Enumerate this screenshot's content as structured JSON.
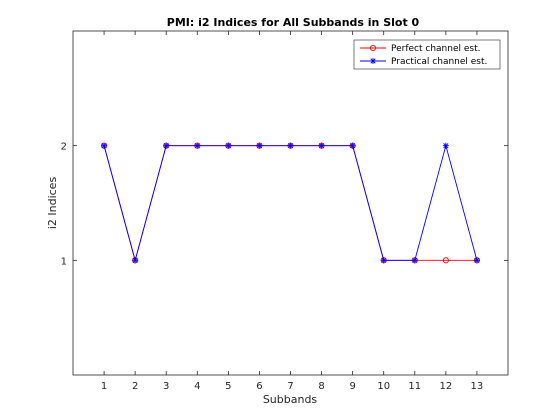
{
  "chart_data": {
    "type": "line",
    "title": "PMI: i2 Indices for All Subbands in Slot 0",
    "xlabel": "Subbands",
    "ylabel": "i2 Indices",
    "x": [
      1,
      2,
      3,
      4,
      5,
      6,
      7,
      8,
      9,
      10,
      11,
      12,
      13
    ],
    "xlim": [
      0,
      14
    ],
    "ylim": [
      0,
      3
    ],
    "xticks": [
      "1",
      "2",
      "3",
      "4",
      "5",
      "6",
      "7",
      "8",
      "9",
      "10",
      "11",
      "12",
      "13"
    ],
    "yticks": [
      "1",
      "2"
    ],
    "ytick_values": [
      1,
      2
    ],
    "grid": false,
    "legend_position": "top-right",
    "series": [
      {
        "name": "Perfect channel est.",
        "color": "#ff0000",
        "marker": "circle",
        "values": [
          2,
          1,
          2,
          2,
          2,
          2,
          2,
          2,
          2,
          1,
          1,
          1,
          1
        ]
      },
      {
        "name": "Practical channel est.",
        "color": "#0000ff",
        "marker": "star",
        "values": [
          2,
          1,
          2,
          2,
          2,
          2,
          2,
          2,
          2,
          1,
          1,
          2,
          1
        ]
      }
    ]
  }
}
